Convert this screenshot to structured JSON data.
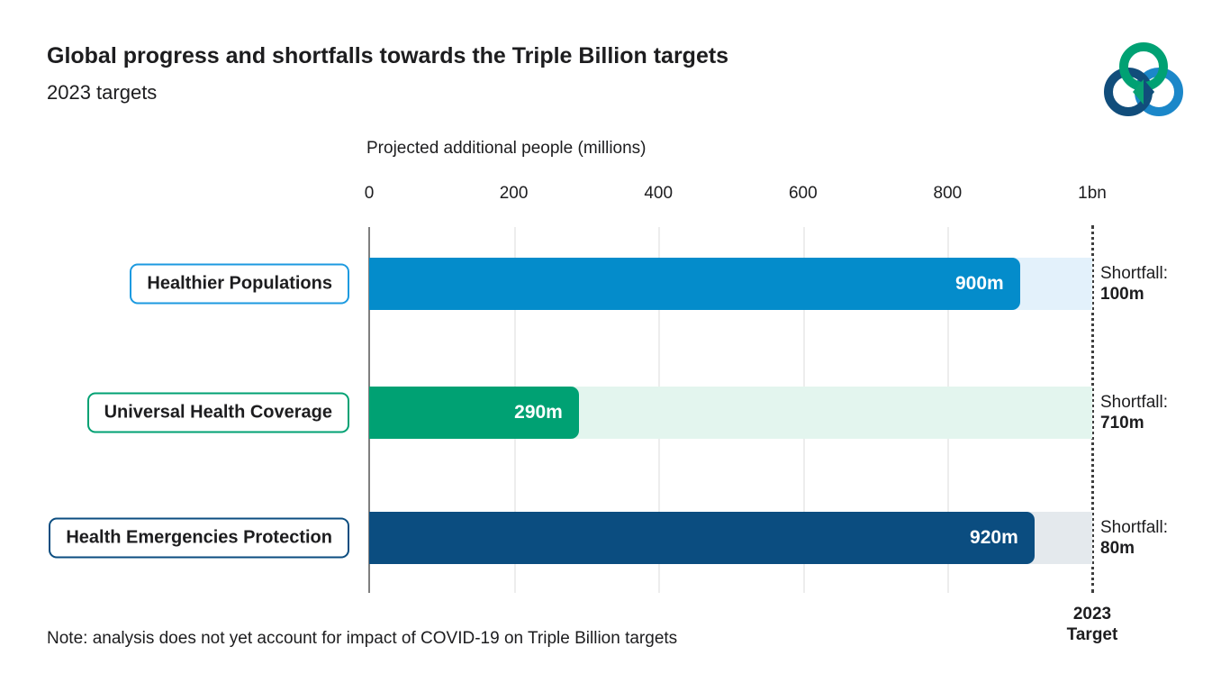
{
  "header": {
    "title": "Global progress and shortfalls towards the Triple Billion targets",
    "subtitle": "2023 targets",
    "logo_icon": "triple-billion-interlocking-rings",
    "logo_colors": {
      "green": "#00a173",
      "navy": "#114d7b",
      "blue": "#1b87c9"
    }
  },
  "chart_data": {
    "type": "bar",
    "orientation": "horizontal",
    "axis_title": "Projected additional people (millions)",
    "tick_labels": [
      "0",
      "200",
      "400",
      "600",
      "800",
      "1bn"
    ],
    "tick_values": [
      0,
      200,
      400,
      600,
      800,
      1000
    ],
    "xlim": [
      0,
      1000
    ],
    "grid": true,
    "target_value": 1000,
    "target_label_line1": "2023",
    "target_label_line2": "Target",
    "shortfall_prefix": "Shortfall:",
    "rows": [
      {
        "label": "Healthier Populations",
        "value": 900,
        "value_label": "900m",
        "shortfall": 100,
        "shortfall_label": "100m",
        "fill_color": "#048ccb",
        "track_color": "#e3f1fb",
        "border_color": "#1c9ae0"
      },
      {
        "label": "Universal Health Coverage",
        "value": 290,
        "value_label": "290m",
        "shortfall": 710,
        "shortfall_label": "710m",
        "fill_color": "#00a173",
        "track_color": "#e3f5ee",
        "border_color": "#00a173"
      },
      {
        "label": "Health Emergencies Protection",
        "value": 920,
        "value_label": "920m",
        "shortfall": 80,
        "shortfall_label": "80m",
        "fill_color": "#0b4d80",
        "track_color": "#e4e9ed",
        "border_color": "#0b4d80"
      }
    ]
  },
  "note": "Note: analysis does not yet account for impact of COVID-19 on Triple Billion targets"
}
